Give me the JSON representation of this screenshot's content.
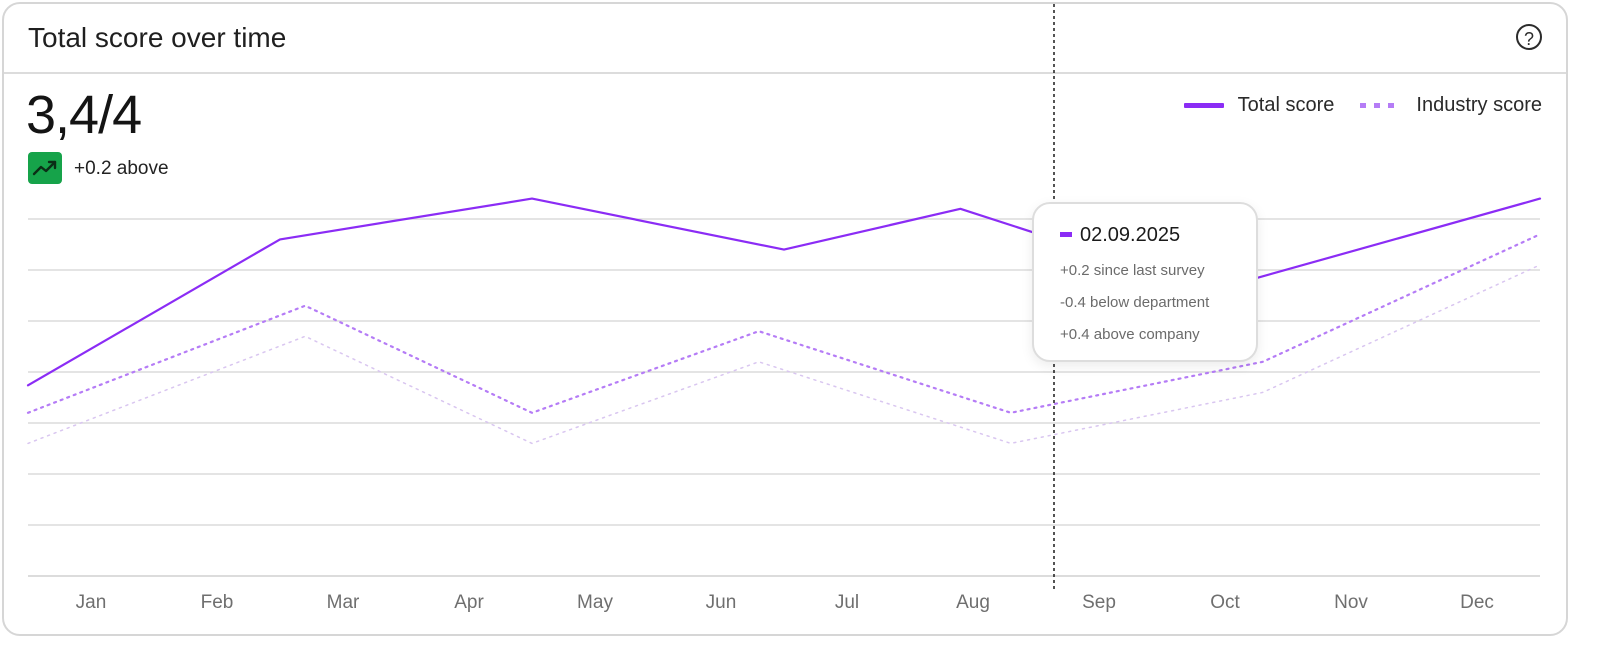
{
  "card": {
    "title": "Total score over time",
    "help_icon": "question-circle-icon",
    "score": "3,4/4",
    "trend_icon": "trending-up-icon",
    "trend_text": "+0.2 above",
    "trend_color": "#16a34a"
  },
  "tooltip": {
    "date": "02.09.2025",
    "lines": [
      "+0.2 since last survey",
      "-0.4 below department",
      "+0.4 above company"
    ]
  },
  "colors": {
    "total": "#8b2cf5",
    "industry": "#b57cf6",
    "company": "#d9c6f0",
    "grid": "#dcdcdc"
  },
  "chart_data": {
    "type": "line",
    "categories": [
      "Jan",
      "Feb",
      "Mar",
      "Apr",
      "May",
      "Jun",
      "Jul",
      "Aug",
      "Sep",
      "Oct",
      "Nov",
      "Dec"
    ],
    "ylim": [
      0,
      4
    ],
    "grid": true,
    "legend": "top-right",
    "series": [
      {
        "name": "Total score",
        "style": "solid",
        "points": [
          [
            0,
            1.87
          ],
          [
            2.0,
            3.3
          ],
          [
            4.0,
            3.7
          ],
          [
            6.0,
            3.2
          ],
          [
            7.4,
            3.6
          ],
          [
            9.4,
            2.8
          ],
          [
            12.0,
            3.7
          ]
        ]
      },
      {
        "name": "Industry score",
        "style": "dotted",
        "points": [
          [
            0,
            1.6
          ],
          [
            2.2,
            2.65
          ],
          [
            4.0,
            1.6
          ],
          [
            5.8,
            2.4
          ],
          [
            7.8,
            1.6
          ],
          [
            9.8,
            2.1
          ],
          [
            12.0,
            3.35
          ]
        ]
      },
      {
        "style": "dotted-faint",
        "points": [
          [
            0,
            1.3
          ],
          [
            2.2,
            2.35
          ],
          [
            4.0,
            1.3
          ],
          [
            5.8,
            2.1
          ],
          [
            7.8,
            1.3
          ],
          [
            9.8,
            1.8
          ],
          [
            12.0,
            3.05
          ]
        ]
      }
    ]
  }
}
